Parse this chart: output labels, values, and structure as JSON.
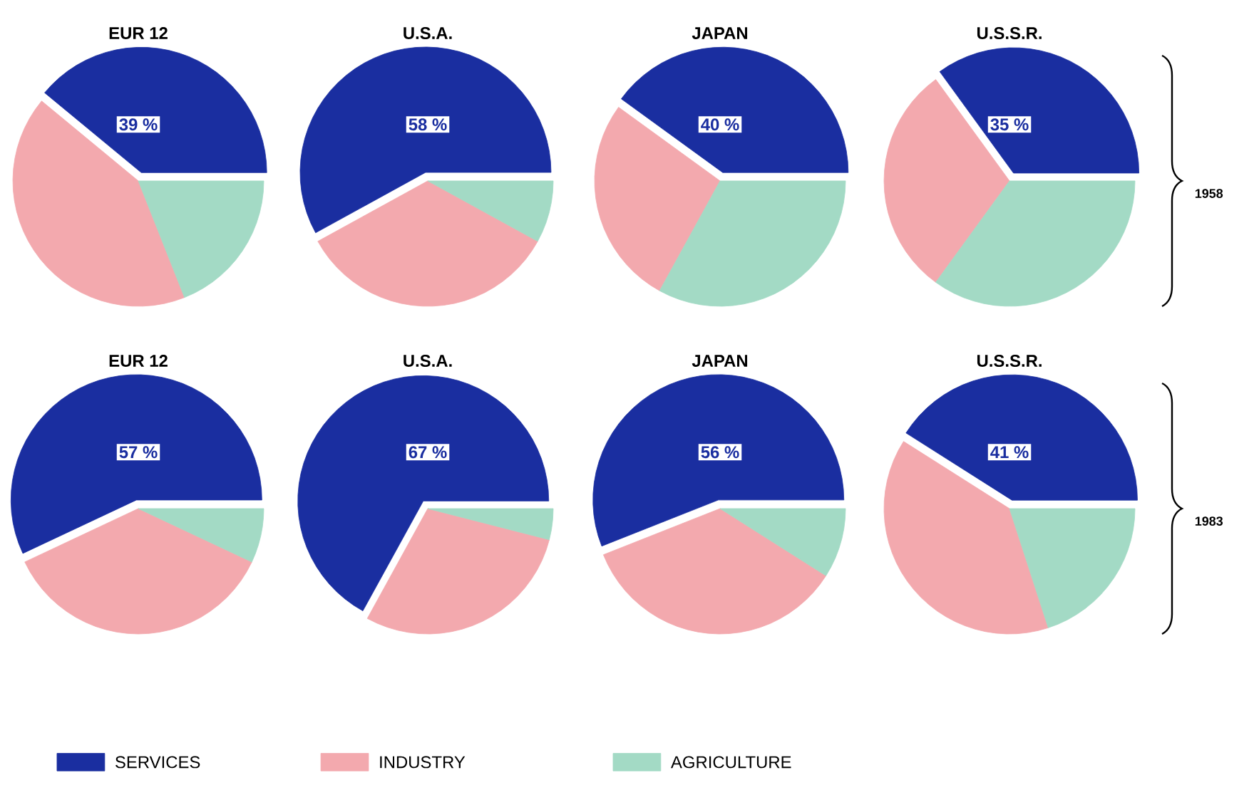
{
  "chart_data": [
    {
      "type": "pie",
      "title": "EUR 12",
      "categories": [
        "SERVICES",
        "INDUSTRY",
        "AGRICULTURE"
      ],
      "values": [
        39,
        42,
        19
      ],
      "value_labels": [
        "39 %",
        null,
        null
      ],
      "colors": [
        "#1a2ea0",
        "#f3a9ae",
        "#a3dac5"
      ],
      "legend": "bottom"
    },
    {
      "type": "pie",
      "title": "U.S.A.",
      "categories": [
        null,
        null,
        null
      ],
      "values": [
        58,
        34,
        8
      ],
      "value_labels": [
        "58 %",
        null,
        null
      ],
      "colors": [
        "#1a2ea0",
        "#f3a9ae",
        "#a3dac5"
      ]
    },
    {
      "type": "pie",
      "title": "JAPAN",
      "categories": [
        null,
        null,
        null
      ],
      "values": [
        40,
        27,
        33
      ],
      "value_labels": [
        "40 %",
        null,
        null
      ],
      "colors": [
        "#1a2ea0",
        "#f3a9ae",
        "#a3dac5"
      ]
    },
    {
      "type": "pie",
      "title": "U.S.S.R.",
      "categories": [
        null,
        null,
        null
      ],
      "values": [
        35,
        30,
        35
      ],
      "value_labels": [
        "35 %",
        null,
        null
      ],
      "colors": [
        "#1a2ea0",
        "#f3a9ae",
        "#a3dac5"
      ],
      "annotations": [
        "1958"
      ]
    },
    {
      "type": "pie",
      "title": "EUR 12",
      "categories": [
        null,
        null,
        null
      ],
      "values": [
        57,
        36,
        7
      ],
      "value_labels": [
        "57 %",
        null,
        null
      ],
      "colors": [
        "#1a2ea0",
        "#f3a9ae",
        "#a3dac5"
      ]
    },
    {
      "type": "pie",
      "title": "U.S.A.",
      "categories": [
        null,
        null,
        null
      ],
      "values": [
        67,
        29,
        4
      ],
      "value_labels": [
        "67 %",
        null,
        null
      ],
      "colors": [
        "#1a2ea0",
        "#f3a9ae",
        "#a3dac5"
      ]
    },
    {
      "type": "pie",
      "title": "JAPAN",
      "categories": [
        null,
        null,
        null
      ],
      "values": [
        56,
        35,
        9
      ],
      "value_labels": [
        "56 %",
        null,
        null
      ],
      "colors": [
        "#1a2ea0",
        "#f3a9ae",
        "#a3dac5"
      ]
    },
    {
      "type": "pie",
      "title": "U.S.S.R.",
      "categories": [
        null,
        null,
        null
      ],
      "values": [
        41,
        39,
        20
      ],
      "value_labels": [
        "41 %",
        null,
        null
      ],
      "colors": [
        "#1a2ea0",
        "#f3a9ae",
        "#a3dac5"
      ],
      "annotations": [
        "1983"
      ]
    }
  ]
}
